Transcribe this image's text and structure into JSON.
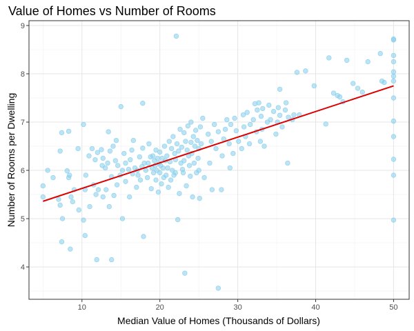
{
  "chart_data": {
    "type": "scatter",
    "title": "Value of Homes vs Number of Rooms",
    "xlabel": "Median Value of Homes (Thousands of Dollars)",
    "ylabel": "Number of Rooms per Dwelling",
    "xlim": [
      3.2,
      52.0
    ],
    "ylim": [
      3.33,
      9.1
    ],
    "xticks": [
      10,
      20,
      30,
      40,
      50
    ],
    "yticks": [
      4,
      5,
      6,
      7,
      8,
      9
    ],
    "grid": true,
    "point_color": "#87ceeb",
    "line_color": "#dd0000",
    "trend_line": {
      "type": "linear",
      "x": [
        5,
        50
      ],
      "y": [
        5.36,
        7.75
      ]
    },
    "series": [
      {
        "values": [
          [
            5.0,
            5.68
          ],
          [
            5.0,
            5.45
          ],
          [
            5.6,
            6.0
          ],
          [
            6.3,
            5.85
          ],
          [
            7.0,
            5.4
          ],
          [
            7.2,
            5.28
          ],
          [
            7.2,
            6.4
          ],
          [
            7.4,
            4.52
          ],
          [
            7.4,
            6.78
          ],
          [
            7.5,
            5.0
          ],
          [
            8.1,
            5.99
          ],
          [
            8.3,
            6.81
          ],
          [
            8.3,
            5.85
          ],
          [
            8.4,
            5.9
          ],
          [
            8.5,
            4.37
          ],
          [
            8.6,
            5.45
          ],
          [
            8.8,
            5.35
          ],
          [
            9.0,
            5.6
          ],
          [
            9.5,
            6.45
          ],
          [
            9.6,
            5.18
          ],
          [
            10.2,
            4.97
          ],
          [
            10.2,
            6.95
          ],
          [
            10.4,
            4.65
          ],
          [
            10.4,
            5.6
          ],
          [
            10.5,
            5.9
          ],
          [
            10.9,
            6.3
          ],
          [
            11.0,
            5.25
          ],
          [
            11.3,
            6.45
          ],
          [
            11.5,
            5.7
          ],
          [
            11.7,
            6.22
          ],
          [
            11.8,
            5.5
          ],
          [
            11.9,
            4.15
          ],
          [
            12.0,
            6.37
          ],
          [
            12.1,
            5.6
          ],
          [
            12.5,
            6.43
          ],
          [
            12.6,
            6.1
          ],
          [
            12.7,
            6.25
          ],
          [
            12.7,
            5.45
          ],
          [
            13.0,
            6.05
          ],
          [
            13.1,
            5.6
          ],
          [
            13.3,
            6.15
          ],
          [
            13.4,
            6.8
          ],
          [
            13.5,
            5.25
          ],
          [
            13.6,
            6.4
          ],
          [
            13.8,
            4.15
          ],
          [
            13.8,
            5.87
          ],
          [
            14.0,
            6.5
          ],
          [
            14.1,
            5.48
          ],
          [
            14.3,
            6.2
          ],
          [
            14.4,
            6.62
          ],
          [
            14.5,
            5.7
          ],
          [
            14.6,
            6.1
          ],
          [
            14.9,
            5.9
          ],
          [
            15.0,
            7.32
          ],
          [
            15.2,
            6.0
          ],
          [
            15.2,
            5.0
          ],
          [
            15.4,
            6.35
          ],
          [
            15.6,
            6.15
          ],
          [
            15.6,
            5.77
          ],
          [
            16.0,
            6.02
          ],
          [
            16.1,
            5.45
          ],
          [
            16.2,
            6.22
          ],
          [
            16.4,
            6.42
          ],
          [
            16.5,
            5.93
          ],
          [
            16.6,
            6.62
          ],
          [
            16.8,
            6.05
          ],
          [
            17.0,
            5.65
          ],
          [
            17.1,
            6.0
          ],
          [
            17.2,
            5.9
          ],
          [
            17.4,
            6.28
          ],
          [
            17.5,
            5.8
          ],
          [
            17.7,
            6.08
          ],
          [
            17.8,
            6.46
          ],
          [
            17.8,
            7.39
          ],
          [
            17.9,
            4.63
          ],
          [
            18.0,
            6.15
          ],
          [
            18.2,
            6.0
          ],
          [
            18.4,
            5.85
          ],
          [
            18.5,
            6.15
          ],
          [
            18.6,
            6.55
          ],
          [
            18.8,
            6.28
          ],
          [
            18.9,
            5.62
          ],
          [
            19.0,
            6.05
          ],
          [
            19.1,
            6.3
          ],
          [
            19.2,
            5.95
          ],
          [
            19.3,
            6.2
          ],
          [
            19.4,
            6.1
          ],
          [
            19.5,
            6.42
          ],
          [
            19.5,
            5.8
          ],
          [
            19.6,
            6.0
          ],
          [
            19.7,
            6.25
          ],
          [
            19.8,
            5.55
          ],
          [
            19.9,
            6.15
          ],
          [
            20.0,
            6.38
          ],
          [
            20.0,
            5.95
          ],
          [
            20.1,
            6.1
          ],
          [
            20.2,
            5.72
          ],
          [
            20.3,
            6.25
          ],
          [
            20.4,
            6.05
          ],
          [
            20.5,
            5.85
          ],
          [
            20.6,
            6.5
          ],
          [
            20.7,
            6.2
          ],
          [
            20.8,
            5.9
          ],
          [
            20.9,
            6.3
          ],
          [
            21.0,
            6.05
          ],
          [
            21.1,
            5.65
          ],
          [
            21.2,
            6.6
          ],
          [
            21.3,
            6.18
          ],
          [
            21.4,
            5.8
          ],
          [
            21.5,
            6.45
          ],
          [
            21.6,
            6.0
          ],
          [
            21.7,
            6.7
          ],
          [
            21.8,
            5.9
          ],
          [
            21.9,
            6.35
          ],
          [
            22.0,
            6.22
          ],
          [
            22.0,
            5.95
          ],
          [
            22.1,
            8.78
          ],
          [
            22.2,
            6.55
          ],
          [
            22.3,
            4.98
          ],
          [
            22.4,
            6.4
          ],
          [
            22.5,
            5.52
          ],
          [
            22.6,
            6.85
          ],
          [
            22.7,
            6.15
          ],
          [
            22.8,
            6.48
          ],
          [
            22.9,
            6.02
          ],
          [
            23.0,
            5.95
          ],
          [
            23.1,
            6.78
          ],
          [
            23.1,
            6.2
          ],
          [
            23.2,
            3.87
          ],
          [
            23.3,
            6.6
          ],
          [
            23.4,
            5.68
          ],
          [
            23.5,
            6.42
          ],
          [
            23.6,
            6.92
          ],
          [
            23.7,
            6.3
          ],
          [
            23.8,
            6.1
          ],
          [
            23.9,
            5.88
          ],
          [
            24.0,
            7.0
          ],
          [
            24.0,
            6.58
          ],
          [
            24.1,
            6.35
          ],
          [
            24.2,
            5.45
          ],
          [
            24.3,
            6.7
          ],
          [
            24.4,
            6.15
          ],
          [
            24.5,
            6.5
          ],
          [
            24.6,
            6.83
          ],
          [
            24.7,
            5.95
          ],
          [
            24.8,
            6.62
          ],
          [
            24.9,
            6.25
          ],
          [
            25.0,
            6.45
          ],
          [
            25.0,
            6.0
          ],
          [
            25.1,
            5.42
          ],
          [
            25.2,
            6.9
          ],
          [
            25.3,
            6.55
          ],
          [
            25.5,
            7.08
          ],
          [
            25.7,
            5.85
          ],
          [
            26.2,
            6.75
          ],
          [
            26.4,
            6.15
          ],
          [
            26.6,
            6.6
          ],
          [
            26.7,
            5.6
          ],
          [
            27.0,
            6.95
          ],
          [
            27.2,
            6.45
          ],
          [
            27.5,
            3.56
          ],
          [
            27.5,
            6.8
          ],
          [
            27.9,
            5.6
          ],
          [
            28.0,
            6.3
          ],
          [
            28.2,
            6.65
          ],
          [
            28.4,
            6.85
          ],
          [
            28.6,
            7.05
          ],
          [
            28.9,
            6.55
          ],
          [
            29.0,
            6.05
          ],
          [
            29.1,
            6.95
          ],
          [
            29.4,
            6.35
          ],
          [
            29.6,
            7.08
          ],
          [
            29.8,
            6.82
          ],
          [
            30.1,
            6.6
          ],
          [
            30.5,
            6.45
          ],
          [
            30.7,
            7.15
          ],
          [
            30.8,
            6.9
          ],
          [
            31.0,
            6.7
          ],
          [
            31.2,
            7.2
          ],
          [
            31.5,
            6.55
          ],
          [
            31.6,
            6.95
          ],
          [
            32.0,
            7.05
          ],
          [
            32.2,
            7.38
          ],
          [
            32.4,
            6.8
          ],
          [
            32.5,
            7.25
          ],
          [
            32.7,
            7.4
          ],
          [
            32.9,
            6.6
          ],
          [
            33.0,
            7.12
          ],
          [
            33.1,
            6.85
          ],
          [
            33.2,
            7.28
          ],
          [
            33.4,
            6.5
          ],
          [
            33.8,
            7.0
          ],
          [
            34.0,
            7.35
          ],
          [
            34.2,
            7.05
          ],
          [
            34.6,
            7.22
          ],
          [
            34.9,
            6.75
          ],
          [
            35.1,
            7.0
          ],
          [
            35.2,
            7.3
          ],
          [
            35.4,
            7.14
          ],
          [
            35.4,
            7.68
          ],
          [
            35.7,
            6.9
          ],
          [
            36.1,
            7.25
          ],
          [
            36.2,
            7.4
          ],
          [
            36.4,
            6.15
          ],
          [
            36.5,
            7.1
          ],
          [
            37.0,
            7.05
          ],
          [
            37.2,
            7.15
          ],
          [
            37.6,
            8.03
          ],
          [
            37.9,
            7.15
          ],
          [
            38.7,
            8.06
          ],
          [
            39.8,
            7.75
          ],
          [
            41.3,
            6.96
          ],
          [
            41.7,
            8.33
          ],
          [
            42.3,
            7.6
          ],
          [
            42.8,
            7.55
          ],
          [
            43.1,
            7.52
          ],
          [
            43.5,
            7.42
          ],
          [
            44.0,
            8.28
          ],
          [
            44.8,
            7.8
          ],
          [
            45.4,
            7.7
          ],
          [
            46.0,
            7.62
          ],
          [
            46.7,
            8.25
          ],
          [
            48.3,
            8.42
          ],
          [
            48.5,
            7.85
          ],
          [
            48.8,
            7.82
          ],
          [
            50.0,
            8.72
          ],
          [
            50.0,
            8.7
          ],
          [
            50.0,
            8.38
          ],
          [
            50.0,
            8.25
          ],
          [
            50.0,
            8.04
          ],
          [
            50.0,
            7.95
          ],
          [
            50.0,
            7.85
          ],
          [
            50.0,
            7.5
          ],
          [
            50.0,
            7.02
          ],
          [
            50.0,
            6.7
          ],
          [
            50.0,
            6.23
          ],
          [
            50.0,
            5.9
          ],
          [
            50.0,
            4.97
          ]
        ]
      }
    ]
  }
}
